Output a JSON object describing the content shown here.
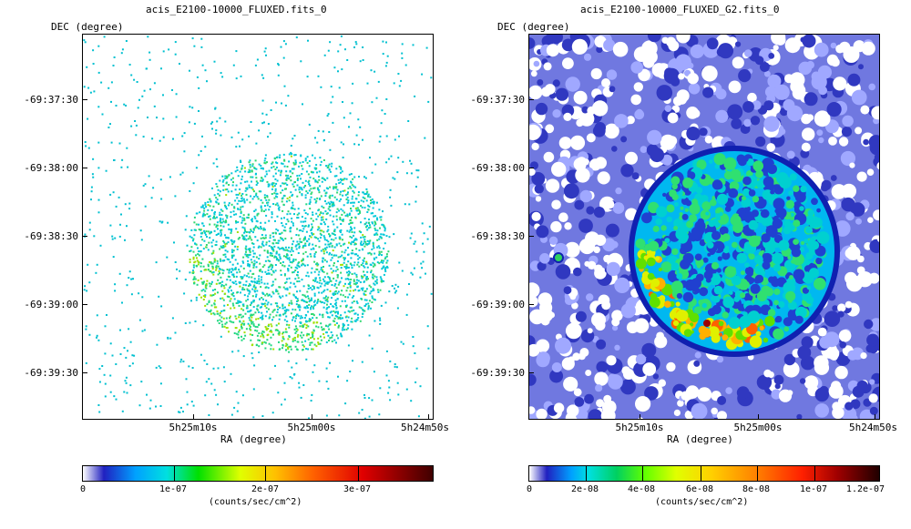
{
  "panels": [
    {
      "title": "acis_E2100-10000_FLUXED.fits_0",
      "y_axis_label": "DEC (degree)",
      "x_axis_label": "RA (degree)",
      "y_ticks": [
        "-69:37:30",
        "-69:38:00",
        "-69:38:30",
        "-69:39:00",
        "-69:39:30"
      ],
      "x_ticks": [
        "5h25m10s",
        "5h25m00s",
        "5h24m50s"
      ],
      "colorbar": {
        "labels": [
          "0",
          "1e-07",
          "2e-07",
          "3e-07"
        ],
        "unit": "(counts/sec/cm^2)"
      }
    },
    {
      "title": "acis_E2100-10000_FLUXED_G2.fits_0",
      "y_axis_label": "DEC (degree)",
      "x_axis_label": "RA (degree)",
      "y_ticks": [
        "-69:37:30",
        "-69:38:00",
        "-69:38:30",
        "-69:39:00",
        "-69:39:30"
      ],
      "x_ticks": [
        "5h25m10s",
        "5h25m00s",
        "5h24m50s"
      ],
      "colorbar": {
        "labels": [
          "0",
          "2e-08",
          "4e-08",
          "6e-08",
          "8e-08",
          "1e-07",
          "1.2e-07"
        ],
        "unit": "(counts/sec/cm^2)"
      }
    }
  ],
  "colormap": [
    "#ffffff",
    "#2020c0",
    "#00a0ff",
    "#00e0e0",
    "#00e000",
    "#e0ff00",
    "#ffc000",
    "#ff6000",
    "#e00000",
    "#400000"
  ]
}
